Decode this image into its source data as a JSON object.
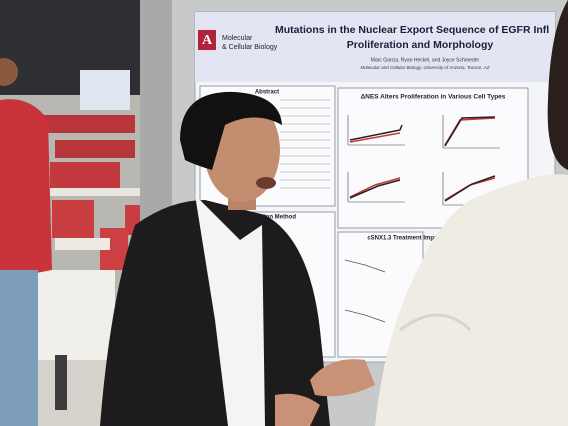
{
  "poster": {
    "title_line_1": "Mutations in the Nuclear Export Sequence of EGFR Infl",
    "title_line_2": "Proliferation and Morphology",
    "authors": "Marc Garcia, Ryan Heckel, and Joyce Schroeder",
    "affiliation": "Molecular and Cellular Biology, University of Arizona, Tucson, AZ",
    "department_line_1": "Molecular",
    "department_line_2": "& Cellular Biology",
    "sections": {
      "abstract": "Abstract",
      "proliferation": "ΔNES Alters Proliferation in Various Cell Types",
      "mutation_method": "Mutation Method",
      "treatment": "cSNX1.3 Treatment Impact"
    }
  }
}
